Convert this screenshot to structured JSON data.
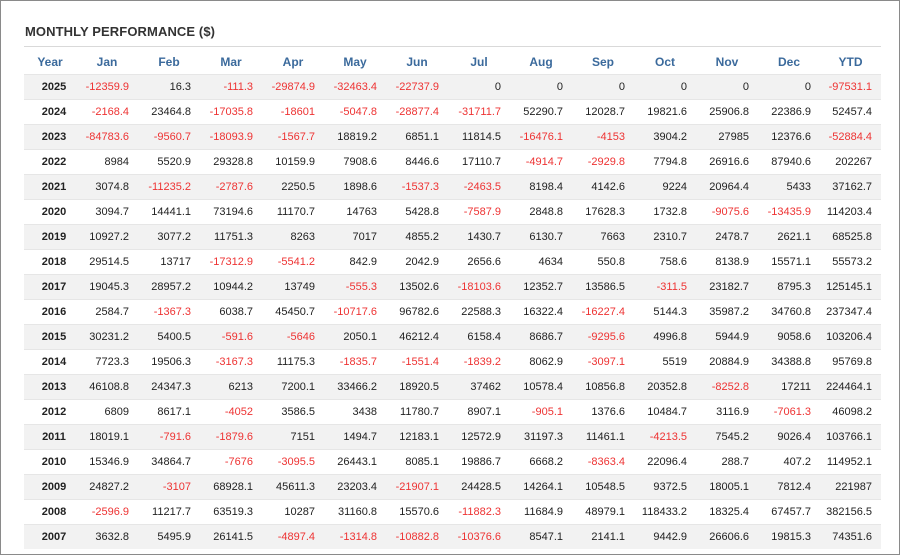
{
  "title": "MONTHLY PERFORMANCE ($)",
  "columns": [
    "Year",
    "Jan",
    "Feb",
    "Mar",
    "Apr",
    "May",
    "Jun",
    "Jul",
    "Aug",
    "Sep",
    "Oct",
    "Nov",
    "Dec",
    "YTD"
  ],
  "colors": {
    "header": "#3b6a9c",
    "negative": "#ee3333",
    "positive": "#222222",
    "stripe": "#f2f2f2"
  },
  "rows": [
    [
      "2025",
      "-12359.9",
      "16.3",
      "-111.3",
      "-29874.9",
      "-32463.4",
      "-22737.9",
      "0",
      "0",
      "0",
      "0",
      "0",
      "0",
      "-97531.1"
    ],
    [
      "2024",
      "-2168.4",
      "23464.8",
      "-17035.8",
      "-18601",
      "-5047.8",
      "-28877.4",
      "-31711.7",
      "52290.7",
      "12028.7",
      "19821.6",
      "25906.8",
      "22386.9",
      "52457.4"
    ],
    [
      "2023",
      "-84783.6",
      "-9560.7",
      "-18093.9",
      "-1567.7",
      "18819.2",
      "6851.1",
      "11814.5",
      "-16476.1",
      "-4153",
      "3904.2",
      "27985",
      "12376.6",
      "-52884.4"
    ],
    [
      "2022",
      "8984",
      "5520.9",
      "29328.8",
      "10159.9",
      "7908.6",
      "8446.6",
      "17110.7",
      "-4914.7",
      "-2929.8",
      "7794.8",
      "26916.6",
      "87940.6",
      "202267"
    ],
    [
      "2021",
      "3074.8",
      "-11235.2",
      "-2787.6",
      "2250.5",
      "1898.6",
      "-1537.3",
      "-2463.5",
      "8198.4",
      "4142.6",
      "9224",
      "20964.4",
      "5433",
      "37162.7"
    ],
    [
      "2020",
      "3094.7",
      "14441.1",
      "73194.6",
      "11170.7",
      "14763",
      "5428.8",
      "-7587.9",
      "2848.8",
      "17628.3",
      "1732.8",
      "-9075.6",
      "-13435.9",
      "114203.4"
    ],
    [
      "2019",
      "10927.2",
      "3077.2",
      "11751.3",
      "8263",
      "7017",
      "4855.2",
      "1430.7",
      "6130.7",
      "7663",
      "2310.7",
      "2478.7",
      "2621.1",
      "68525.8"
    ],
    [
      "2018",
      "29514.5",
      "13717",
      "-17312.9",
      "-5541.2",
      "842.9",
      "2042.9",
      "2656.6",
      "4634",
      "550.8",
      "758.6",
      "8138.9",
      "15571.1",
      "55573.2"
    ],
    [
      "2017",
      "19045.3",
      "28957.2",
      "10944.2",
      "13749",
      "-555.3",
      "13502.6",
      "-18103.6",
      "12352.7",
      "13586.5",
      "-311.5",
      "23182.7",
      "8795.3",
      "125145.1"
    ],
    [
      "2016",
      "2584.7",
      "-1367.3",
      "6038.7",
      "45450.7",
      "-10717.6",
      "96782.6",
      "22588.3",
      "16322.4",
      "-16227.4",
      "5144.3",
      "35987.2",
      "34760.8",
      "237347.4"
    ],
    [
      "2015",
      "30231.2",
      "5400.5",
      "-591.6",
      "-5646",
      "2050.1",
      "46212.4",
      "6158.4",
      "8686.7",
      "-9295.6",
      "4996.8",
      "5944.9",
      "9058.6",
      "103206.4"
    ],
    [
      "2014",
      "7723.3",
      "19506.3",
      "-3167.3",
      "11175.3",
      "-1835.7",
      "-1551.4",
      "-1839.2",
      "8062.9",
      "-3097.1",
      "5519",
      "20884.9",
      "34388.8",
      "95769.8"
    ],
    [
      "2013",
      "46108.8",
      "24347.3",
      "6213",
      "7200.1",
      "33466.2",
      "18920.5",
      "37462",
      "10578.4",
      "10856.8",
      "20352.8",
      "-8252.8",
      "17211",
      "224464.1"
    ],
    [
      "2012",
      "6809",
      "8617.1",
      "-4052",
      "3586.5",
      "3438",
      "11780.7",
      "8907.1",
      "-905.1",
      "1376.6",
      "10484.7",
      "3116.9",
      "-7061.3",
      "46098.2"
    ],
    [
      "2011",
      "18019.1",
      "-791.6",
      "-1879.6",
      "7151",
      "1494.7",
      "12183.1",
      "12572.9",
      "31197.3",
      "11461.1",
      "-4213.5",
      "7545.2",
      "9026.4",
      "103766.1"
    ],
    [
      "2010",
      "15346.9",
      "34864.7",
      "-7676",
      "-3095.5",
      "26443.1",
      "8085.1",
      "19886.7",
      "6668.2",
      "-8363.4",
      "22096.4",
      "288.7",
      "407.2",
      "114952.1"
    ],
    [
      "2009",
      "24827.2",
      "-3107",
      "68928.1",
      "45611.3",
      "23203.4",
      "-21907.1",
      "24428.5",
      "14264.1",
      "10548.5",
      "9372.5",
      "18005.1",
      "7812.4",
      "221987"
    ],
    [
      "2008",
      "-2596.9",
      "11217.7",
      "63519.3",
      "10287",
      "31160.8",
      "15570.6",
      "-11882.3",
      "11684.9",
      "48979.1",
      "118433.2",
      "18325.4",
      "67457.7",
      "382156.5"
    ],
    [
      "2007",
      "3632.8",
      "5495.9",
      "26141.5",
      "-4897.4",
      "-1314.8",
      "-10882.8",
      "-10376.6",
      "8547.1",
      "2141.1",
      "9442.9",
      "26606.6",
      "19815.3",
      "74351.6"
    ]
  ]
}
